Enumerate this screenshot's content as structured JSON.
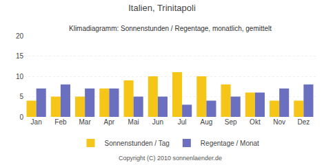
{
  "chart_data": {
    "type": "bar",
    "title": "Italien, Trinitapoli",
    "subtitle": "Klimadiagramm: Sonnenstunden / Regentage, monatlich, gemittelt",
    "annotations": [
      "Copyright (C) 2010 sonnenlaender.de"
    ],
    "categories": [
      "Jan",
      "Feb",
      "Mar",
      "Apr",
      "Mai",
      "Jun",
      "Jul",
      "Aug",
      "Sep",
      "Okt",
      "Nov",
      "Dez"
    ],
    "series": [
      {
        "name": "Sonnenstunden / Tag",
        "color": "#F5C518",
        "values": [
          4,
          5,
          5,
          7,
          9,
          10,
          11,
          10,
          8,
          6,
          4,
          4
        ]
      },
      {
        "name": "Regentage / Monat",
        "color": "#6B6FBF",
        "values": [
          7,
          8,
          7,
          7,
          5,
          5,
          3,
          4,
          5,
          6,
          7,
          8
        ]
      }
    ],
    "ylim": [
      0,
      20
    ],
    "yticks": [
      0,
      5,
      10,
      15,
      20
    ],
    "grid": true,
    "legend": "bottom"
  }
}
